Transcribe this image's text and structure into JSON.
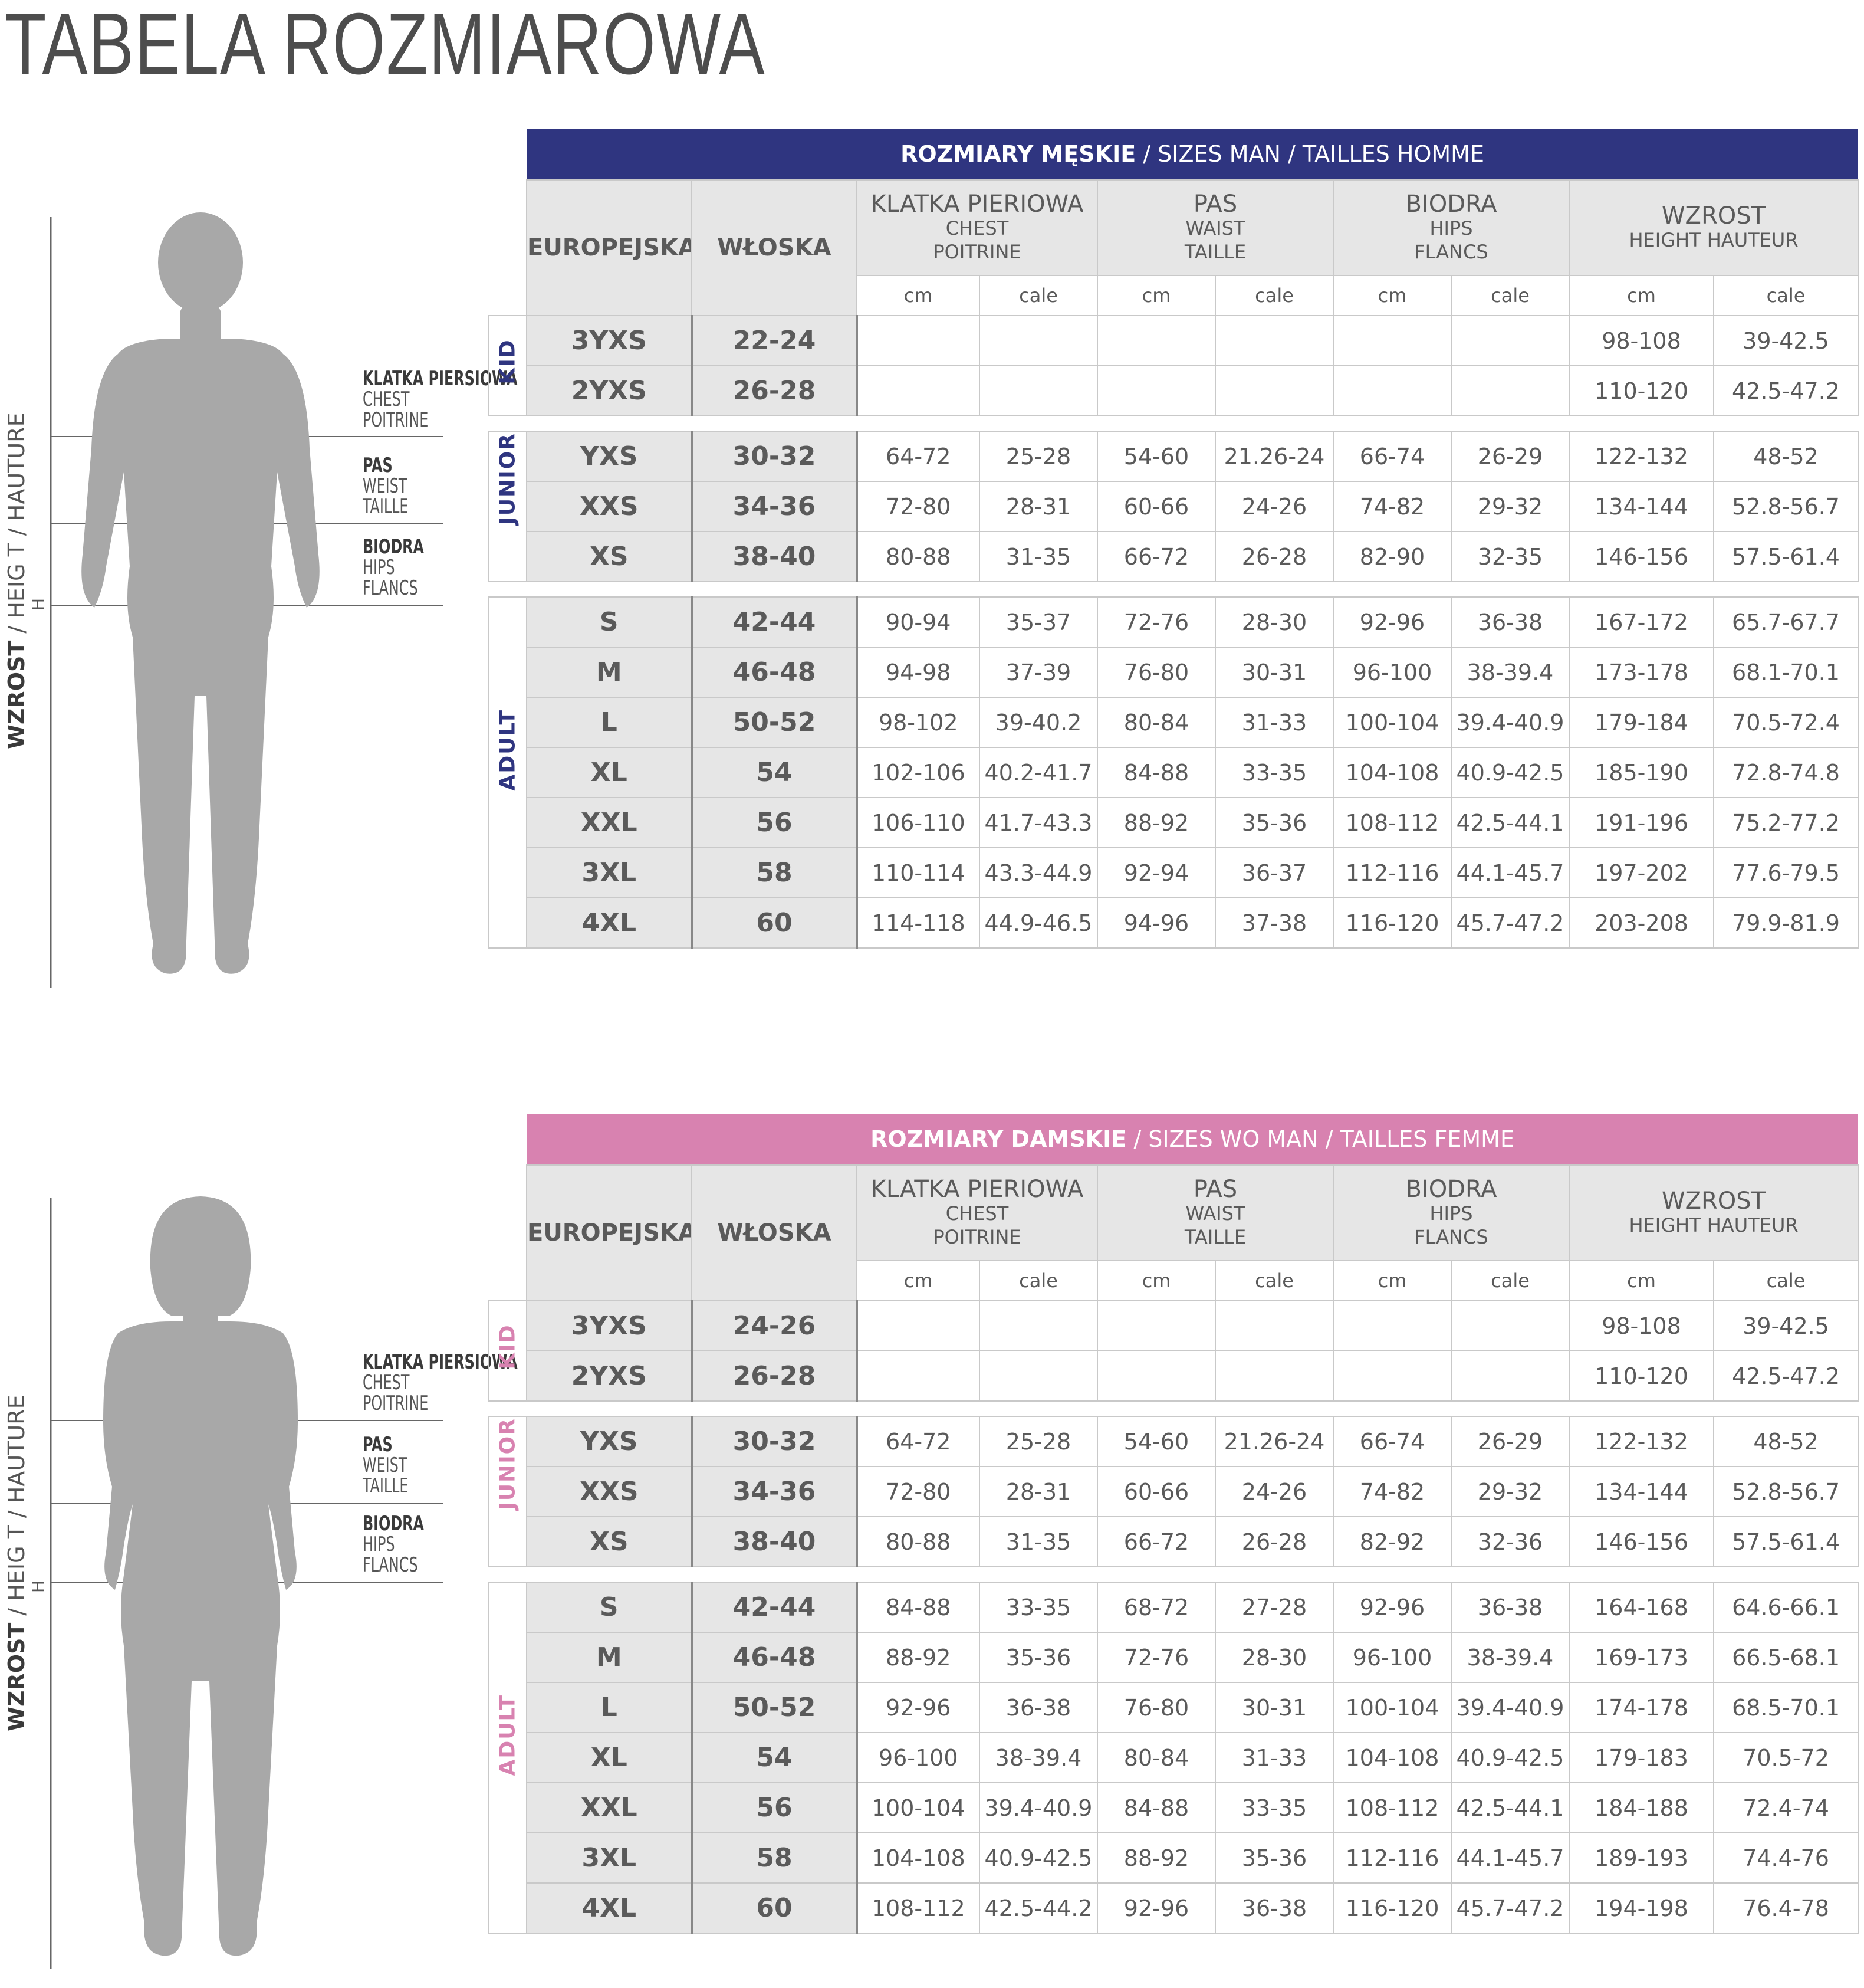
{
  "title": "TABELA ROZMIAROWA",
  "colors": {
    "men_band": "#2f3580",
    "women_band": "#d882b0",
    "men_category": "#2f3580",
    "women_category": "#d882b0",
    "figure": "#a8a8a8"
  },
  "measures": {
    "chest": [
      "KLATKA PIERSIOWA",
      "CHEST",
      "POITRINE"
    ],
    "waist": [
      "PAS",
      "WEIST",
      "TAILLE"
    ],
    "hips": [
      "BIODRA",
      "HIPS",
      "FLANCS"
    ]
  },
  "height_label": {
    "bold": "WZROST",
    "rest": " / HEIG   T / HAUTURE",
    "h": "H"
  },
  "headers": {
    "european": "EUROPEJSKA",
    "italian": "WŁOSKA",
    "chest": [
      "KLATKA PIERIOWA",
      "CHEST",
      "POITRINE"
    ],
    "waist": [
      "PAS",
      "WAIST",
      "TAILLE"
    ],
    "hips": [
      "BIODRA",
      "HIPS",
      "FLANCS"
    ],
    "height": [
      "WZROST",
      "HEIGHT HAUTEUR"
    ],
    "cm": "cm",
    "cale": "cale"
  },
  "categories": {
    "kid": "KID",
    "junior": "JUNIOR",
    "adult": "ADULT"
  },
  "men": {
    "band_bold": "ROZMIARY MĘSKIE",
    "band_rest": " / SIZES  MAN / TAILLES HOMME",
    "kid": [
      [
        "3YXS",
        "22-24",
        "",
        "",
        "",
        "",
        "",
        "",
        "98-108",
        "39-42.5"
      ],
      [
        "2YXS",
        "26-28",
        "",
        "",
        "",
        "",
        "",
        "",
        "110-120",
        "42.5-47.2"
      ]
    ],
    "junior": [
      [
        "YXS",
        "30-32",
        "64-72",
        "25-28",
        "54-60",
        "21.26-24",
        "66-74",
        "26-29",
        "122-132",
        "48-52"
      ],
      [
        "XXS",
        "34-36",
        "72-80",
        "28-31",
        "60-66",
        "24-26",
        "74-82",
        "29-32",
        "134-144",
        "52.8-56.7"
      ],
      [
        "XS",
        "38-40",
        "80-88",
        "31-35",
        "66-72",
        "26-28",
        "82-90",
        "32-35",
        "146-156",
        "57.5-61.4"
      ]
    ],
    "adult": [
      [
        "S",
        "42-44",
        "90-94",
        "35-37",
        "72-76",
        "28-30",
        "92-96",
        "36-38",
        "167-172",
        "65.7-67.7"
      ],
      [
        "M",
        "46-48",
        "94-98",
        "37-39",
        "76-80",
        "30-31",
        "96-100",
        "38-39.4",
        "173-178",
        "68.1-70.1"
      ],
      [
        "L",
        "50-52",
        "98-102",
        "39-40.2",
        "80-84",
        "31-33",
        "100-104",
        "39.4-40.9",
        "179-184",
        "70.5-72.4"
      ],
      [
        "XL",
        "54",
        "102-106",
        "40.2-41.7",
        "84-88",
        "33-35",
        "104-108",
        "40.9-42.5",
        "185-190",
        "72.8-74.8"
      ],
      [
        "XXL",
        "56",
        "106-110",
        "41.7-43.3",
        "88-92",
        "35-36",
        "108-112",
        "42.5-44.1",
        "191-196",
        "75.2-77.2"
      ],
      [
        "3XL",
        "58",
        "110-114",
        "43.3-44.9",
        "92-94",
        "36-37",
        "112-116",
        "44.1-45.7",
        "197-202",
        "77.6-79.5"
      ],
      [
        "4XL",
        "60",
        "114-118",
        "44.9-46.5",
        "94-96",
        "37-38",
        "116-120",
        "45.7-47.2",
        "203-208",
        "79.9-81.9"
      ]
    ]
  },
  "women": {
    "band_bold": "ROZMIARY DAMSKIE",
    "band_rest": " / SIZES WO MAN / TAILLES FEMME",
    "kid": [
      [
        "3YXS",
        "24-26",
        "",
        "",
        "",
        "",
        "",
        "",
        "98-108",
        "39-42.5"
      ],
      [
        "2YXS",
        "26-28",
        "",
        "",
        "",
        "",
        "",
        "",
        "110-120",
        "42.5-47.2"
      ]
    ],
    "junior": [
      [
        "YXS",
        "30-32",
        "64-72",
        "25-28",
        "54-60",
        "21.26-24",
        "66-74",
        "26-29",
        "122-132",
        "48-52"
      ],
      [
        "XXS",
        "34-36",
        "72-80",
        "28-31",
        "60-66",
        "24-26",
        "74-82",
        "29-32",
        "134-144",
        "52.8-56.7"
      ],
      [
        "XS",
        "38-40",
        "80-88",
        "31-35",
        "66-72",
        "26-28",
        "82-92",
        "32-36",
        "146-156",
        "57.5-61.4"
      ]
    ],
    "adult": [
      [
        "S",
        "42-44",
        "84-88",
        "33-35",
        "68-72",
        "27-28",
        "92-96",
        "36-38",
        "164-168",
        "64.6-66.1"
      ],
      [
        "M",
        "46-48",
        "88-92",
        "35-36",
        "72-76",
        "28-30",
        "96-100",
        "38-39.4",
        "169-173",
        "66.5-68.1"
      ],
      [
        "L",
        "50-52",
        "92-96",
        "36-38",
        "76-80",
        "30-31",
        "100-104",
        "39.4-40.9",
        "174-178",
        "68.5-70.1"
      ],
      [
        "XL",
        "54",
        "96-100",
        "38-39.4",
        "80-84",
        "31-33",
        "104-108",
        "40.9-42.5",
        "179-183",
        "70.5-72"
      ],
      [
        "XXL",
        "56",
        "100-104",
        "39.4-40.9",
        "84-88",
        "33-35",
        "108-112",
        "42.5-44.1",
        "184-188",
        "72.4-74"
      ],
      [
        "3XL",
        "58",
        "104-108",
        "40.9-42.5",
        "88-92",
        "35-36",
        "112-116",
        "44.1-45.7",
        "189-193",
        "74.4-76"
      ],
      [
        "4XL",
        "60",
        "108-112",
        "42.5-44.2",
        "92-96",
        "36-38",
        "116-120",
        "45.7-47.2",
        "194-198",
        "76.4-78"
      ]
    ]
  }
}
